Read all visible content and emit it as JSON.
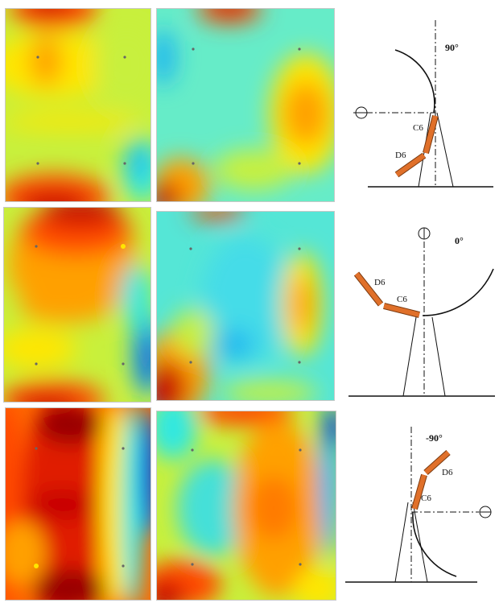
{
  "figure": {
    "colormap": [
      "#0a2fd8",
      "#1fb6f0",
      "#33e8e0",
      "#c8f03c",
      "#ffe600",
      "#ffa000",
      "#ff4a00",
      "#c80000",
      "#7a0000"
    ],
    "rows": [
      {
        "angle_label": "90°",
        "segment_proximal": "C6",
        "segment_distal": "D6",
        "maps": [
          "pressure map, hotspots top and bottom",
          "pressure map, hotspot right"
        ]
      },
      {
        "angle_label": "0°",
        "segment_proximal": "C6",
        "segment_distal": "D6",
        "maps": [
          "pressure map, hotspot top-center",
          "pressure map, hotspot bottom-left"
        ]
      },
      {
        "angle_label": "-90°",
        "segment_proximal": "C6",
        "segment_distal": "D6",
        "maps": [
          "pressure map, wide red band",
          "pressure map, orange band right-center"
        ]
      }
    ],
    "colors": {
      "segment_fill": "#e0702a",
      "segment_stroke": "#7a3a10",
      "line": "#111111"
    }
  }
}
